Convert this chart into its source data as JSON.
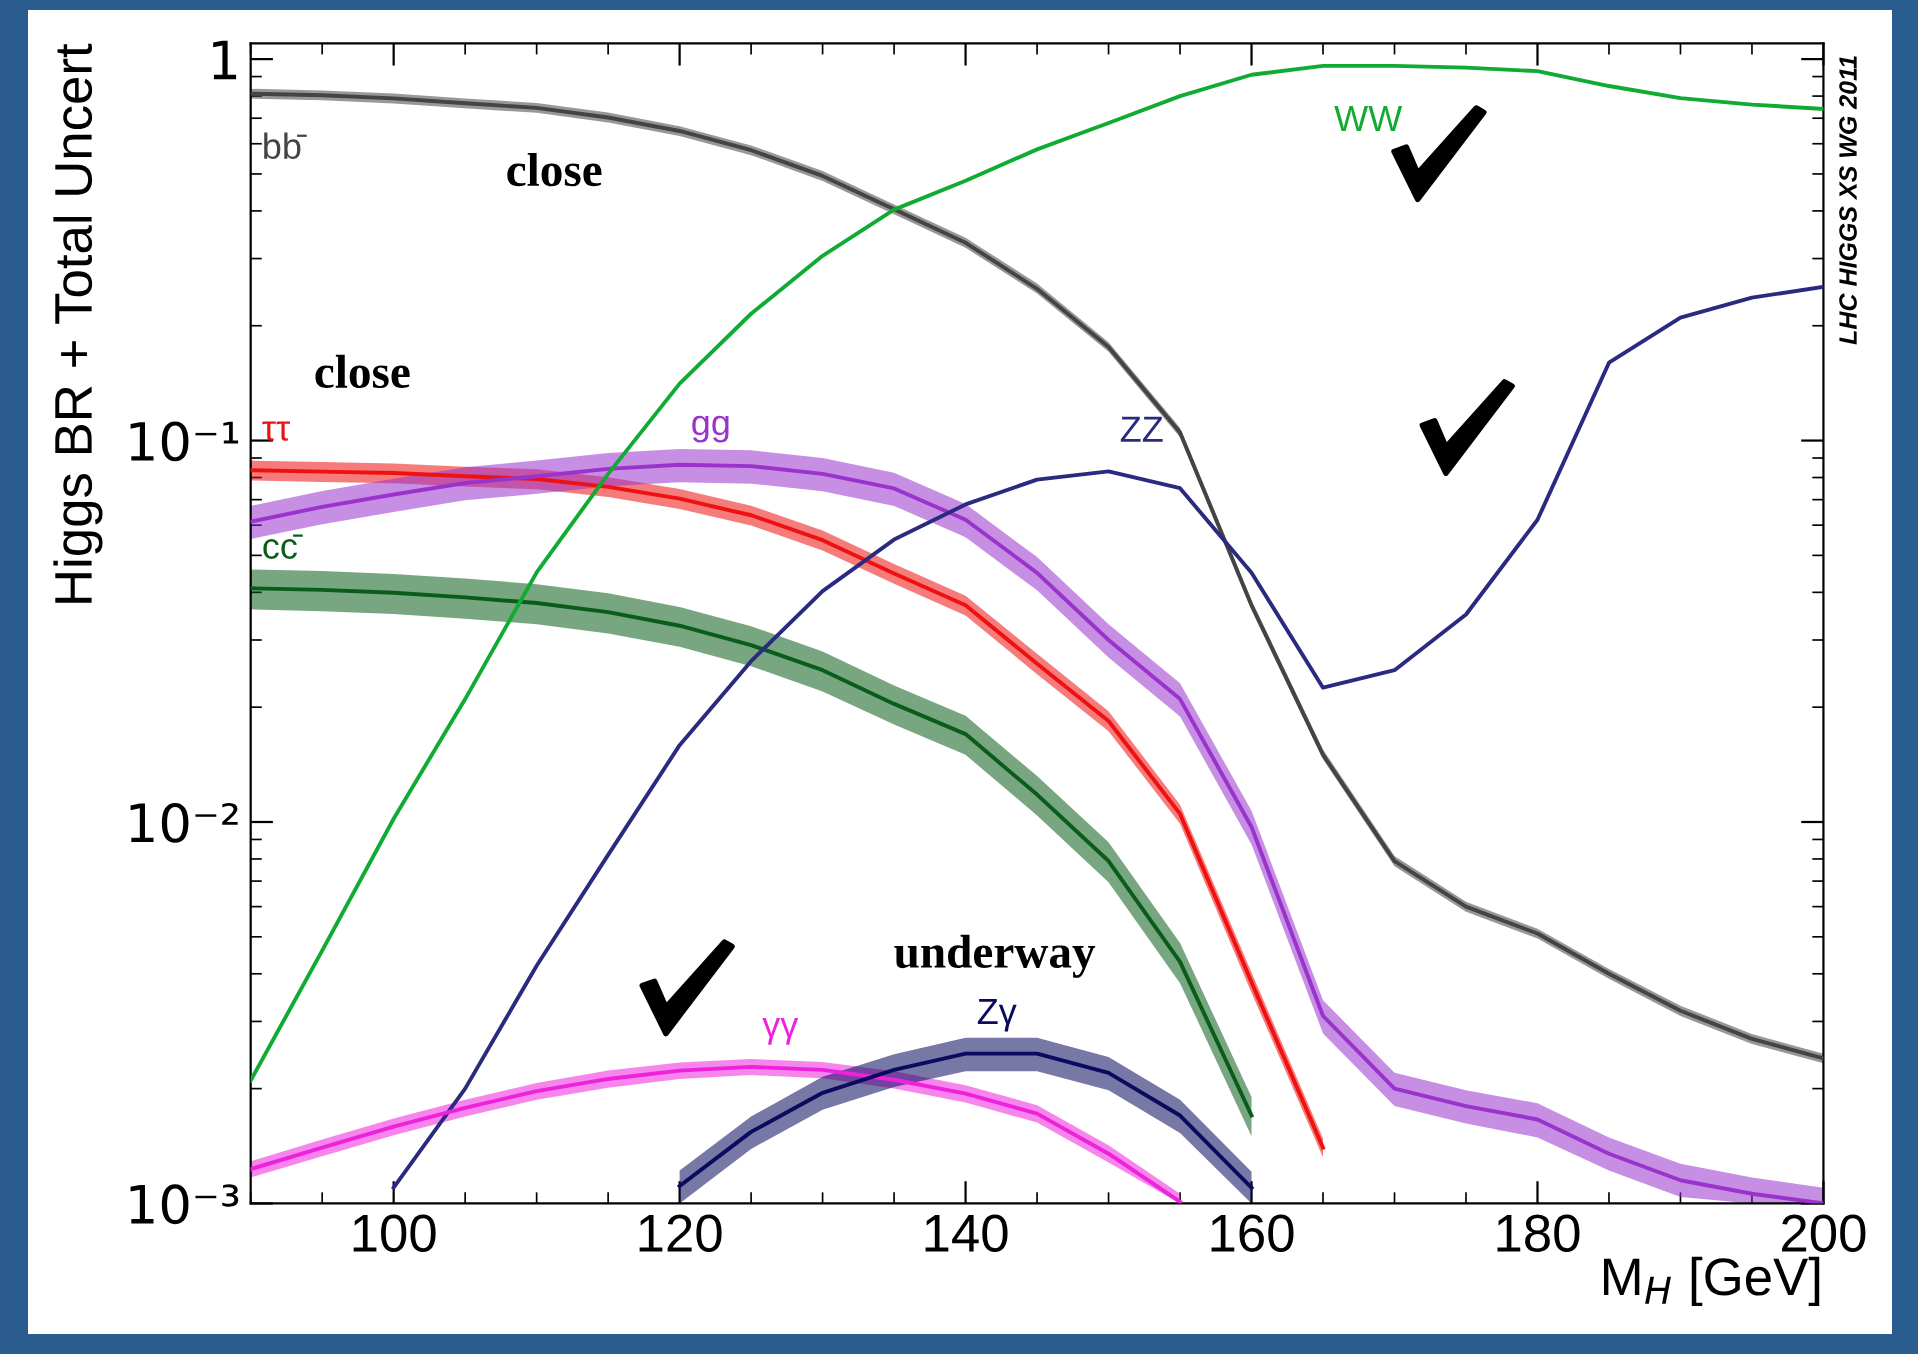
{
  "chart_data": {
    "type": "line",
    "ylabel": "Higgs BR + Total Uncert",
    "xlabel": "M$_{H}$ [GeV]",
    "log": "y",
    "xlim": [
      90,
      200
    ],
    "xticks": [
      100,
      120,
      140,
      160,
      180,
      200
    ],
    "ylim": [
      0.001,
      1.1
    ],
    "yticks": [
      {
        "value": 0.001,
        "label": "10⁻³"
      },
      {
        "value": 0.01,
        "label": "10⁻²"
      },
      {
        "value": 0.1,
        "label": "10⁻¹"
      },
      1
    ],
    "x": [
      90,
      95,
      100,
      105,
      110,
      115,
      120,
      125,
      130,
      135,
      140,
      145,
      150,
      155,
      160,
      165,
      170,
      175,
      180,
      185,
      190,
      195,
      200
    ],
    "series": [
      {
        "name": "bb̄",
        "color": "#444444",
        "values": [
          0.812,
          0.804,
          0.789,
          0.766,
          0.745,
          0.703,
          0.648,
          0.577,
          0.494,
          0.404,
          0.33,
          0.25,
          0.176,
          0.105,
          0.037,
          0.015,
          0.0079,
          0.006,
          0.0051,
          0.004,
          0.0032,
          0.0027,
          0.0024
        ],
        "lower": [
          0.788,
          0.78,
          0.765,
          0.743,
          0.723,
          0.682,
          0.629,
          0.56,
          0.479,
          0.392,
          0.32,
          0.243,
          0.171,
          0.102,
          0.0359,
          0.0146,
          0.00766,
          0.00582,
          0.00495,
          0.00388,
          0.0031,
          0.00262,
          0.00233
        ],
        "upper": [
          0.836,
          0.828,
          0.813,
          0.789,
          0.767,
          0.724,
          0.667,
          0.594,
          0.509,
          0.416,
          0.34,
          0.258,
          0.181,
          0.108,
          0.0381,
          0.0155,
          0.00814,
          0.00618,
          0.00525,
          0.00412,
          0.0033,
          0.00278,
          0.00247
        ]
      },
      {
        "name": "ττ",
        "color": "#ee1111",
        "values": [
          0.0836,
          0.0829,
          0.0822,
          0.0806,
          0.0793,
          0.0756,
          0.0704,
          0.0637,
          0.0548,
          0.0448,
          0.037,
          0.026,
          0.0184,
          0.0105,
          0.0038,
          0.0014,
          null,
          null,
          null,
          null,
          null,
          null,
          null
        ],
        "lower": [
          0.0786,
          0.0779,
          0.0773,
          0.0758,
          0.0745,
          0.0711,
          0.0662,
          0.0599,
          0.0515,
          0.0421,
          0.0348,
          0.0244,
          0.0173,
          0.0099,
          0.00357,
          0.00132,
          null,
          null,
          null,
          null,
          null,
          null,
          null
        ],
        "upper": [
          0.0886,
          0.0879,
          0.0871,
          0.0854,
          0.0841,
          0.0801,
          0.0746,
          0.0675,
          0.0581,
          0.0475,
          0.0392,
          0.0276,
          0.0195,
          0.0111,
          0.00403,
          0.00148,
          null,
          null,
          null,
          null,
          null,
          null,
          null
        ]
      },
      {
        "name": "gg",
        "color": "#9933cc",
        "values": [
          0.0613,
          0.067,
          0.0722,
          0.0774,
          0.0806,
          0.0843,
          0.0864,
          0.0857,
          0.0818,
          0.0749,
          0.062,
          0.045,
          0.03,
          0.021,
          0.0097,
          0.0031,
          0.002,
          0.0018,
          0.00166,
          0.00135,
          0.00115,
          0.00106,
          0.001
        ],
        "lower": [
          0.0552,
          0.0603,
          0.065,
          0.0697,
          0.0725,
          0.0759,
          0.0778,
          0.0771,
          0.0736,
          0.0674,
          0.0558,
          0.0405,
          0.027,
          0.0189,
          0.00873,
          0.00279,
          0.0018,
          0.00162,
          0.00149,
          0.00122,
          0.00104,
          0.001,
          0.001
        ],
        "upper": [
          0.0674,
          0.0737,
          0.0794,
          0.0851,
          0.0887,
          0.0927,
          0.095,
          0.0943,
          0.09,
          0.0824,
          0.0682,
          0.0495,
          0.033,
          0.0231,
          0.0107,
          0.00341,
          0.0022,
          0.00198,
          0.00183,
          0.00149,
          0.00127,
          0.00117,
          0.0011
        ]
      },
      {
        "name": "cc̄",
        "color": "#0a5c1a",
        "values": [
          0.041,
          0.0406,
          0.0399,
          0.0388,
          0.0375,
          0.0355,
          0.0327,
          0.0291,
          0.025,
          0.0204,
          0.017,
          0.0118,
          0.0079,
          0.0043,
          0.0017,
          null,
          null,
          null,
          null,
          null,
          null,
          null,
          null
        ],
        "lower": [
          0.0361,
          0.0357,
          0.0351,
          0.0341,
          0.033,
          0.0312,
          0.0288,
          0.0256,
          0.022,
          0.018,
          0.015,
          0.0104,
          0.00695,
          0.00378,
          0.0015,
          null,
          null,
          null,
          null,
          null,
          null,
          null,
          null
        ],
        "upper": [
          0.0459,
          0.0455,
          0.0447,
          0.0435,
          0.042,
          0.0398,
          0.0366,
          0.0326,
          0.028,
          0.0228,
          0.019,
          0.0132,
          0.00885,
          0.00482,
          0.0019,
          null,
          null,
          null,
          null,
          null,
          null,
          null,
          null
        ]
      },
      {
        "name": "WW",
        "color": "#11aa33",
        "values": [
          0.0021,
          0.0046,
          0.0102,
          0.021,
          0.0451,
          0.0818,
          0.141,
          0.215,
          0.305,
          0.403,
          0.48,
          0.58,
          0.68,
          0.8,
          0.91,
          0.96,
          0.96,
          0.95,
          0.93,
          0.85,
          0.79,
          0.76,
          0.74
        ]
      },
      {
        "name": "ZZ",
        "color": "#2a2a80",
        "values": [
          null,
          null,
          0.0011,
          0.002,
          0.0042,
          0.0082,
          0.0159,
          0.0264,
          0.0403,
          0.055,
          0.068,
          0.079,
          0.083,
          0.075,
          0.045,
          0.0225,
          0.025,
          0.035,
          0.062,
          0.16,
          0.21,
          0.237,
          0.253
        ]
      },
      {
        "name": "γγ",
        "color": "#ee22dd",
        "values": [
          0.00123,
          0.0014,
          0.00159,
          0.00178,
          0.00197,
          0.00212,
          0.00223,
          0.00228,
          0.00224,
          0.00211,
          0.00194,
          0.00172,
          0.00135,
          0.00101,
          null,
          null,
          null,
          null,
          null,
          null,
          null,
          null,
          null
        ],
        "lower": [
          0.00117,
          0.00133,
          0.00151,
          0.00169,
          0.00187,
          0.00201,
          0.00212,
          0.00217,
          0.00213,
          0.002,
          0.00184,
          0.00163,
          0.00128,
          0.001,
          null,
          null,
          null,
          null,
          null,
          null,
          null,
          null,
          null
        ],
        "upper": [
          0.00129,
          0.00147,
          0.00167,
          0.00187,
          0.00207,
          0.00223,
          0.00234,
          0.00239,
          0.00235,
          0.00222,
          0.00204,
          0.00181,
          0.00142,
          0.00106,
          null,
          null,
          null,
          null,
          null,
          null,
          null,
          null,
          null
        ]
      },
      {
        "name": "Zγ",
        "color": "#0a0a5e",
        "values": [
          null,
          null,
          null,
          null,
          null,
          null,
          0.00111,
          0.00154,
          0.00195,
          0.00224,
          0.00247,
          0.00247,
          0.0022,
          0.0017,
          0.0011,
          null,
          null,
          null,
          null,
          null,
          null,
          null,
          null
        ],
        "lower": [
          null,
          null,
          null,
          null,
          null,
          null,
          0.001,
          0.00139,
          0.00176,
          0.00202,
          0.00222,
          0.00222,
          0.00198,
          0.00153,
          0.001,
          null,
          null,
          null,
          null,
          null,
          null,
          null,
          null
        ],
        "upper": [
          null,
          null,
          null,
          null,
          null,
          null,
          0.00122,
          0.00169,
          0.00215,
          0.00246,
          0.00272,
          0.00272,
          0.00242,
          0.00187,
          0.00121,
          null,
          null,
          null,
          null,
          null,
          null,
          null,
          null
        ]
      }
    ],
    "annotations": [
      "close",
      "close",
      "underway",
      "LHC HIGGS XS WG 2011"
    ]
  }
}
